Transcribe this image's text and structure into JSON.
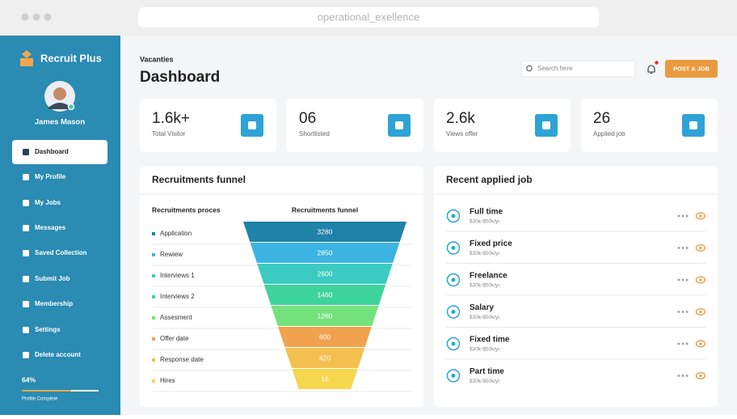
{
  "browser": {
    "url": "operational_exellence"
  },
  "sidebar": {
    "brand": "Recruit Plus",
    "user": "James Mason",
    "menu": [
      "Dashboard",
      "My Profile",
      "My Jobs",
      "Messages",
      "Saved Collection",
      "Submit Job",
      "Membership",
      "Settings",
      "Delete account"
    ],
    "profile": {
      "value": 64,
      "label": "64%"
    },
    "profile_caption": "Profile Complete"
  },
  "header": {
    "breadcrumb": "Vacanties",
    "title": "Dashboard",
    "search_placeholder": "Search here",
    "button": "POST A JOB"
  },
  "stats": [
    {
      "value": "1.6k+",
      "label": "Total Visitor"
    },
    {
      "value": "06",
      "label": "Shortlisted"
    },
    {
      "value": "2.6k",
      "label": "Views offer"
    },
    {
      "value": "26",
      "label": "Applied job"
    }
  ],
  "funnel": {
    "title": "Recruitments funnel",
    "column_process": "Recruitments proces",
    "column_funnel": "Recruitments funnel",
    "categories": [
      "Application",
      "Rewiew",
      "Interviews 1",
      "Interviews 2",
      "Assesment",
      "Offer date",
      "Response date",
      "Hires"
    ],
    "values": [
      3280,
      2850,
      2600,
      1460,
      1260,
      600,
      420,
      16
    ],
    "colors": [
      "#1f82a8",
      "#3cb4e2",
      "#3ccbc0",
      "#3dd39c",
      "#74e27c",
      "#f0a24e",
      "#f3bf4f",
      "#f6d64d"
    ]
  },
  "recent_jobs": {
    "title": "Recent applied job",
    "items": [
      {
        "title": "Full time",
        "salary": "$30k-$50k/yr"
      },
      {
        "title": "Fixed price",
        "salary": "$30k-$50k/yr"
      },
      {
        "title": "Freelance",
        "salary": "$30k-$50k/yr"
      },
      {
        "title": "Salary",
        "salary": "$30k-$50k/yr"
      },
      {
        "title": "Fixed time",
        "salary": "$30k-$50k/yr"
      },
      {
        "title": "Part time",
        "salary": "$30k-$50k/yr"
      }
    ]
  }
}
